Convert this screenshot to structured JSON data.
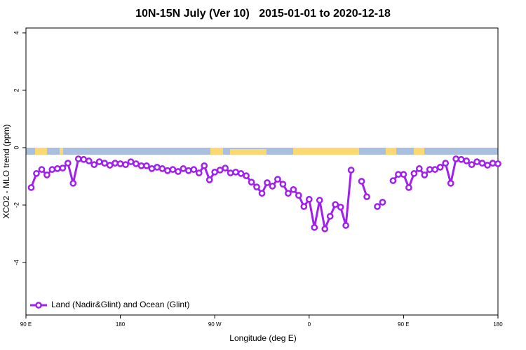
{
  "chart_data": {
    "type": "line",
    "title": "10N-15N July (Ver 10)   2015-01-01 to 2020-12-18",
    "xlabel": "Longitude (deg E)",
    "ylabel": "XCO2 - MLO trend (ppm)",
    "xlim": [
      90,
      540
    ],
    "xticks": [
      {
        "value": 90,
        "label": "90 E"
      },
      {
        "value": 180,
        "label": "180"
      },
      {
        "value": 270,
        "label": "90 W"
      },
      {
        "value": 360,
        "label": "0"
      },
      {
        "value": 450,
        "label": "90 E"
      },
      {
        "value": 540,
        "label": "180"
      }
    ],
    "ylim": [
      -5.83,
      4.17
    ],
    "yticks": [
      4,
      2,
      0,
      -2,
      -4
    ],
    "legend": "bottom-left",
    "x": [
      95,
      100,
      105,
      110,
      115,
      120,
      125,
      130,
      135,
      140,
      145,
      150,
      155,
      160,
      165,
      170,
      175,
      180,
      185,
      190,
      195,
      200,
      205,
      210,
      215,
      220,
      225,
      230,
      235,
      240,
      245,
      250,
      255,
      260,
      265,
      270,
      275,
      280,
      285,
      290,
      295,
      300,
      305,
      310,
      315,
      320,
      325,
      330,
      335,
      340,
      345,
      350,
      355,
      360,
      365,
      370,
      375,
      380,
      385,
      390,
      395,
      400,
      405,
      410,
      415,
      420,
      425,
      430,
      435,
      440,
      445,
      450,
      455,
      460,
      465,
      470,
      475,
      480,
      485,
      490,
      495,
      500,
      505,
      510,
      515,
      520,
      525,
      530,
      535,
      540
    ],
    "series": [
      {
        "name": "Land (Nadir&Glint) and Ocean (Glint)",
        "color": "#a020f0",
        "values": [
          -1.39,
          -0.9,
          -0.76,
          -0.95,
          -0.76,
          -0.73,
          -0.71,
          -0.54,
          -1.24,
          -0.39,
          -0.41,
          -0.46,
          -0.59,
          -0.49,
          -0.54,
          -0.61,
          -0.54,
          -0.56,
          -0.59,
          -0.49,
          -0.56,
          -0.63,
          -0.63,
          -0.73,
          -0.68,
          -0.73,
          -0.8,
          -0.76,
          -0.83,
          -0.73,
          -0.8,
          -0.76,
          -0.88,
          -0.63,
          -1.12,
          -0.85,
          -0.78,
          -0.71,
          -0.88,
          -0.85,
          -0.9,
          -0.98,
          -1.2,
          -1.37,
          -1.59,
          -1.22,
          -1.34,
          -1.1,
          -1.27,
          -1.59,
          -1.46,
          -1.66,
          -2.05,
          -1.8,
          -2.78,
          -1.83,
          -2.83,
          -2.39,
          -1.98,
          -2.07,
          -2.71,
          -0.78,
          null,
          -1.17,
          -1.71,
          null,
          -2.05,
          -1.9,
          null,
          -1.15,
          -0.93,
          -0.93,
          -1.39,
          -0.9,
          -0.73,
          -0.95,
          -0.76,
          -0.76,
          -0.68,
          -0.54,
          -1.24,
          -0.39,
          -0.41,
          -0.46,
          -0.59,
          -0.49,
          -0.54,
          -0.61,
          -0.54,
          -0.56
        ]
      }
    ]
  }
}
